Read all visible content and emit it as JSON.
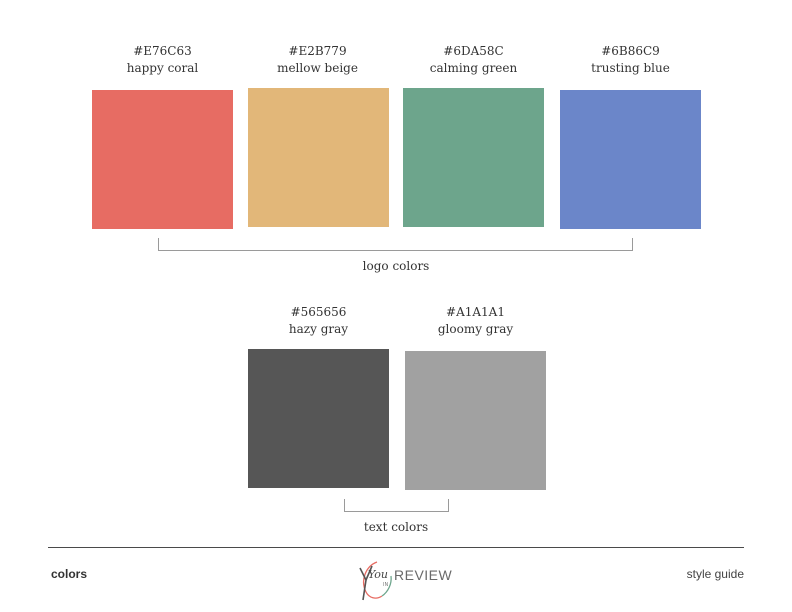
{
  "logo_colors": [
    {
      "hex": "#E76C63",
      "name": "happy coral"
    },
    {
      "hex": "#E2B779",
      "name": "mellow beige"
    },
    {
      "hex": "#6DA58C",
      "name": "calming green"
    },
    {
      "hex": "#6B86C9",
      "name": "trusting blue"
    }
  ],
  "logo_colors_label": "logo colors",
  "text_colors": [
    {
      "hex": "#565656",
      "name": "hazy gray"
    },
    {
      "hex": "#A1A1A1",
      "name": "gloomy gray"
    }
  ],
  "text_colors_label": "text colors",
  "footer": {
    "left": "colors",
    "right": "style guide",
    "logo_script": "You",
    "logo_small": "IN",
    "logo_word": "REVIEW"
  }
}
